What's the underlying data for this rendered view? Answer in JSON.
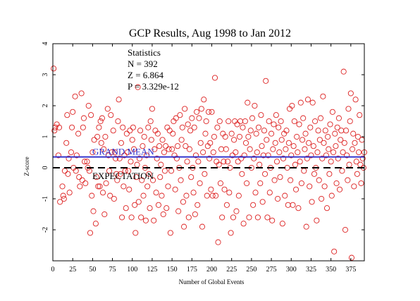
{
  "chart_data": {
    "type": "scatter",
    "title": "GCP Results, Aug 1998 to Jan 2012",
    "xlabel": "Number of Global Events",
    "ylabel": "Z-score",
    "xlim": [
      0,
      392
    ],
    "ylim": [
      -3,
      4
    ],
    "xticks": [
      0,
      25,
      50,
      75,
      100,
      125,
      150,
      175,
      200,
      225,
      250,
      275,
      300,
      325,
      350,
      375
    ],
    "yticks": [
      -2,
      -1,
      0,
      1,
      2,
      3,
      4
    ],
    "grid": false,
    "stats": {
      "heading": "Statistics",
      "n": "N = 392",
      "z": "Z = 6.864",
      "p": "P = 3.329e-12"
    },
    "reference_lines": [
      {
        "label": "GRAND MEAN",
        "y": 0.35,
        "color": "#3333cc",
        "style": "solid"
      },
      {
        "label": "EXPECTATION",
        "y": 0.0,
        "color": "#000000",
        "style": "dashed"
      }
    ],
    "marker_color": "#dd2222",
    "points": [
      [
        1,
        3.2
      ],
      [
        2,
        1.2
      ],
      [
        3,
        1.3
      ],
      [
        5,
        1.4
      ],
      [
        7,
        0.4
      ],
      [
        8,
        1.3
      ],
      [
        9,
        -1.1
      ],
      [
        12,
        -0.6
      ],
      [
        13,
        -0.9
      ],
      [
        14,
        -1.0
      ],
      [
        15,
        -0.1
      ],
      [
        17,
        0.8
      ],
      [
        18,
        1.7
      ],
      [
        19,
        -0.2
      ],
      [
        20,
        0.3
      ],
      [
        21,
        -0.8
      ],
      [
        23,
        0.5
      ],
      [
        24,
        1.3
      ],
      [
        25,
        1.8
      ],
      [
        26,
        0.0
      ],
      [
        28,
        2.3
      ],
      [
        29,
        -0.1
      ],
      [
        30,
        0.4
      ],
      [
        32,
        1.1
      ],
      [
        33,
        -0.3
      ],
      [
        34,
        -0.6
      ],
      [
        36,
        2.4
      ],
      [
        37,
        -0.4
      ],
      [
        38,
        1.3
      ],
      [
        39,
        1.6
      ],
      [
        40,
        0.2
      ],
      [
        41,
        -0.5
      ],
      [
        43,
        0.2
      ],
      [
        44,
        0.0
      ],
      [
        45,
        2.0
      ],
      [
        46,
        -0.1
      ],
      [
        47,
        -2.1
      ],
      [
        48,
        1.7
      ],
      [
        49,
        -0.9
      ],
      [
        50,
        0.5
      ],
      [
        51,
        -1.4
      ],
      [
        52,
        0.9
      ],
      [
        54,
        -1.8
      ],
      [
        55,
        -0.3
      ],
      [
        56,
        1.0
      ],
      [
        57,
        -0.6
      ],
      [
        58,
        1.3
      ],
      [
        59,
        -0.6
      ],
      [
        60,
        1.5
      ],
      [
        61,
        0.8
      ],
      [
        62,
        1.6
      ],
      [
        63,
        -0.8
      ],
      [
        64,
        0.6
      ],
      [
        65,
        -1.5
      ],
      [
        66,
        1.0
      ],
      [
        67,
        -0.5
      ],
      [
        69,
        1.9
      ],
      [
        70,
        0.4
      ],
      [
        71,
        -0.1
      ],
      [
        72,
        -0.9
      ],
      [
        73,
        1.7
      ],
      [
        74,
        0.5
      ],
      [
        76,
        1.2
      ],
      [
        77,
        -1.0
      ],
      [
        78,
        0.5
      ],
      [
        79,
        0.3
      ],
      [
        80,
        -0.2
      ],
      [
        81,
        -0.4
      ],
      [
        82,
        1.5
      ],
      [
        83,
        2.2
      ],
      [
        84,
        0.3
      ],
      [
        85,
        -0.2
      ],
      [
        86,
        0.8
      ],
      [
        87,
        -1.6
      ],
      [
        88,
        1.3
      ],
      [
        89,
        -0.6
      ],
      [
        90,
        0.4
      ],
      [
        91,
        -0.1
      ],
      [
        92,
        -1.3
      ],
      [
        93,
        1.1
      ],
      [
        94,
        0.5
      ],
      [
        95,
        -0.1
      ],
      [
        96,
        -0.7
      ],
      [
        97,
        1.2
      ],
      [
        98,
        0.2
      ],
      [
        99,
        -1.6
      ],
      [
        100,
        0.9
      ],
      [
        101,
        1.3
      ],
      [
        102,
        0.6
      ],
      [
        103,
        -1.2
      ],
      [
        104,
        -2.1
      ],
      [
        105,
        -0.3
      ],
      [
        106,
        0.1
      ],
      [
        107,
        2.6
      ],
      [
        108,
        -1.1
      ],
      [
        109,
        0.3
      ],
      [
        110,
        1.2
      ],
      [
        111,
        -1.6
      ],
      [
        112,
        -0.4
      ],
      [
        113,
        0.7
      ],
      [
        114,
        -0.9
      ],
      [
        115,
        1.0
      ],
      [
        116,
        0.0
      ],
      [
        117,
        -1.7
      ],
      [
        118,
        0.4
      ],
      [
        119,
        -0.6
      ],
      [
        120,
        1.3
      ],
      [
        121,
        -0.2
      ],
      [
        122,
        -1.3
      ],
      [
        123,
        1.5
      ],
      [
        124,
        0.9
      ],
      [
        125,
        1.9
      ],
      [
        126,
        -0.4
      ],
      [
        127,
        -1.7
      ],
      [
        128,
        0.6
      ],
      [
        129,
        1.2
      ],
      [
        130,
        -0.8
      ],
      [
        131,
        0.3
      ],
      [
        132,
        1.1
      ],
      [
        133,
        -1.2
      ],
      [
        134,
        0.7
      ],
      [
        135,
        -0.3
      ],
      [
        136,
        0.1
      ],
      [
        137,
        -0.9
      ],
      [
        138,
        0.9
      ],
      [
        139,
        -1.5
      ],
      [
        140,
        0.5
      ],
      [
        141,
        -0.1
      ],
      [
        142,
        0.7
      ],
      [
        143,
        -1.3
      ],
      [
        144,
        1.3
      ],
      [
        145,
        -0.6
      ],
      [
        146,
        0.6
      ],
      [
        147,
        1.2
      ],
      [
        148,
        -2.1
      ],
      [
        149,
        -0.1
      ],
      [
        150,
        0.6
      ],
      [
        151,
        1.1
      ],
      [
        152,
        1.5
      ],
      [
        153,
        0.4
      ],
      [
        154,
        -0.7
      ],
      [
        155,
        1.6
      ],
      [
        156,
        0.3
      ],
      [
        157,
        0.7
      ],
      [
        158,
        -1.4
      ],
      [
        159,
        0.0
      ],
      [
        160,
        1.7
      ],
      [
        161,
        -0.4
      ],
      [
        162,
        0.9
      ],
      [
        163,
        1.3
      ],
      [
        164,
        -1.1
      ],
      [
        165,
        -1.9
      ],
      [
        166,
        1.9
      ],
      [
        167,
        0.7
      ],
      [
        168,
        -0.9
      ],
      [
        169,
        0.2
      ],
      [
        170,
        1.4
      ],
      [
        171,
        -1.6
      ],
      [
        172,
        0.6
      ],
      [
        173,
        1.2
      ],
      [
        174,
        -0.3
      ],
      [
        175,
        1.6
      ],
      [
        176,
        0.0
      ],
      [
        177,
        -0.8
      ],
      [
        178,
        1.3
      ],
      [
        179,
        -1.5
      ],
      [
        180,
        0.4
      ],
      [
        181,
        1.8
      ],
      [
        182,
        -1.2
      ],
      [
        183,
        0.2
      ],
      [
        184,
        1.6
      ],
      [
        185,
        -0.5
      ],
      [
        186,
        0.8
      ],
      [
        187,
        1.9
      ],
      [
        188,
        -1.9
      ],
      [
        189,
        0.5
      ],
      [
        190,
        2.2
      ],
      [
        191,
        -0.2
      ],
      [
        192,
        1.1
      ],
      [
        193,
        1.5
      ],
      [
        194,
        -0.9
      ],
      [
        195,
        0.7
      ],
      [
        196,
        1.8
      ],
      [
        197,
        0.3
      ],
      [
        198,
        0.8
      ],
      [
        199,
        -0.7
      ],
      [
        200,
        1.8
      ],
      [
        201,
        -0.9
      ],
      [
        202,
        0.5
      ],
      [
        203,
        1.0
      ],
      [
        204,
        2.9
      ],
      [
        205,
        -0.9
      ],
      [
        206,
        0.2
      ],
      [
        207,
        1.3
      ],
      [
        208,
        -2.4
      ],
      [
        209,
        0.1
      ],
      [
        210,
        1.5
      ],
      [
        211,
        -0.5
      ],
      [
        212,
        0.6
      ],
      [
        213,
        -1.6
      ],
      [
        214,
        1.1
      ],
      [
        215,
        0.2
      ],
      [
        216,
        -0.7
      ],
      [
        217,
        1.0
      ],
      [
        218,
        0.6
      ],
      [
        219,
        -1.2
      ],
      [
        220,
        0.2
      ],
      [
        221,
        1.5
      ],
      [
        222,
        -0.8
      ],
      [
        223,
        0.0
      ],
      [
        224,
        -2.1
      ],
      [
        225,
        1.1
      ],
      [
        226,
        0.4
      ],
      [
        227,
        -1.6
      ],
      [
        228,
        0.9
      ],
      [
        229,
        1.5
      ],
      [
        230,
        0.5
      ],
      [
        231,
        -1.4
      ],
      [
        232,
        1.4
      ],
      [
        233,
        0.2
      ],
      [
        234,
        -0.9
      ],
      [
        235,
        1.0
      ],
      [
        236,
        1.5
      ],
      [
        237,
        0.3
      ],
      [
        238,
        -0.2
      ],
      [
        239,
        1.3
      ],
      [
        240,
        -1.8
      ],
      [
        241,
        0.4
      ],
      [
        242,
        1.5
      ],
      [
        243,
        0.8
      ],
      [
        244,
        -0.5
      ],
      [
        245,
        2.1
      ],
      [
        246,
        1.0
      ],
      [
        247,
        -1.6
      ],
      [
        248,
        0.6
      ],
      [
        249,
        1.2
      ],
      [
        250,
        0.0
      ],
      [
        251,
        1.6
      ],
      [
        252,
        -1.2
      ],
      [
        253,
        0.3
      ],
      [
        254,
        2.0
      ],
      [
        255,
        -0.8
      ],
      [
        256,
        1.1
      ],
      [
        257,
        0.5
      ],
      [
        258,
        -1.6
      ],
      [
        259,
        1.3
      ],
      [
        260,
        0.1
      ],
      [
        261,
        -0.5
      ],
      [
        262,
        1.7
      ],
      [
        263,
        0.7
      ],
      [
        264,
        -1.1
      ],
      [
        265,
        0.4
      ],
      [
        266,
        1.2
      ],
      [
        267,
        -0.2
      ],
      [
        268,
        2.8
      ],
      [
        269,
        0.9
      ],
      [
        270,
        -1.6
      ],
      [
        271,
        0.4
      ],
      [
        272,
        1.5
      ],
      [
        273,
        -0.8
      ],
      [
        274,
        0.0
      ],
      [
        275,
        1.1
      ],
      [
        276,
        -1.7
      ],
      [
        277,
        0.6
      ],
      [
        278,
        1.4
      ],
      [
        279,
        -0.4
      ],
      [
        280,
        0.8
      ],
      [
        281,
        1.7
      ],
      [
        282,
        0.2
      ],
      [
        283,
        -1.0
      ],
      [
        284,
        1.3
      ],
      [
        285,
        0.5
      ],
      [
        286,
        -0.3
      ],
      [
        287,
        1.5
      ],
      [
        288,
        0.9
      ],
      [
        289,
        -1.8
      ],
      [
        290,
        0.3
      ],
      [
        291,
        1.1
      ],
      [
        292,
        -0.9
      ],
      [
        293,
        0.6
      ],
      [
        294,
        1.2
      ],
      [
        295,
        0.0
      ],
      [
        296,
        -1.2
      ],
      [
        297,
        0.8
      ],
      [
        298,
        1.9
      ],
      [
        299,
        -0.4
      ],
      [
        300,
        0.4
      ],
      [
        301,
        2.0
      ],
      [
        302,
        -1.2
      ],
      [
        303,
        0.7
      ],
      [
        304,
        1.5
      ],
      [
        305,
        0.1
      ],
      [
        306,
        -0.7
      ],
      [
        307,
        1.0
      ],
      [
        308,
        0.5
      ],
      [
        309,
        -1.3
      ],
      [
        310,
        1.4
      ],
      [
        311,
        0.2
      ],
      [
        312,
        2.1
      ],
      [
        313,
        -0.5
      ],
      [
        314,
        0.9
      ],
      [
        315,
        1.6
      ],
      [
        316,
        -0.1
      ],
      [
        317,
        0.6
      ],
      [
        318,
        1.1
      ],
      [
        319,
        -1.9
      ],
      [
        320,
        0.3
      ],
      [
        321,
        2.2
      ],
      [
        322,
        0.8
      ],
      [
        323,
        -0.6
      ],
      [
        324,
        1.3
      ],
      [
        325,
        0.4
      ],
      [
        326,
        -1.1
      ],
      [
        327,
        2.1
      ],
      [
        328,
        0.7
      ],
      [
        329,
        -0.2
      ],
      [
        330,
        1.5
      ],
      [
        331,
        0.0
      ],
      [
        332,
        -1.7
      ],
      [
        333,
        0.5
      ],
      [
        334,
        1.2
      ],
      [
        335,
        -0.4
      ],
      [
        336,
        0.9
      ],
      [
        337,
        1.6
      ],
      [
        338,
        -1.0
      ],
      [
        339,
        0.3
      ],
      [
        340,
        2.3
      ],
      [
        341,
        0.8
      ],
      [
        342,
        -0.6
      ],
      [
        343,
        1.2
      ],
      [
        344,
        0.4
      ],
      [
        345,
        -1.3
      ],
      [
        346,
        1.0
      ],
      [
        347,
        0.6
      ],
      [
        348,
        -0.2
      ],
      [
        349,
        1.4
      ],
      [
        350,
        0.2
      ],
      [
        351,
        -0.9
      ],
      [
        352,
        1.8
      ],
      [
        353,
        0.5
      ],
      [
        354,
        -2.7
      ],
      [
        355,
        1.1
      ],
      [
        356,
        0.7
      ],
      [
        357,
        -0.5
      ],
      [
        358,
        1.3
      ],
      [
        359,
        0.3
      ],
      [
        360,
        1.6
      ],
      [
        361,
        -0.7
      ],
      [
        362,
        0.9
      ],
      [
        363,
        1.2
      ],
      [
        364,
        -0.1
      ],
      [
        365,
        0.5
      ],
      [
        366,
        3.1
      ],
      [
        367,
        0.8
      ],
      [
        368,
        -2.0
      ],
      [
        369,
        1.2
      ],
      [
        370,
        0.4
      ],
      [
        371,
        -0.4
      ],
      [
        372,
        1.9
      ],
      [
        373,
        0.1
      ],
      [
        374,
        1.5
      ],
      [
        375,
        2.4
      ],
      [
        376,
        -2.9
      ],
      [
        377,
        0.6
      ],
      [
        378,
        1.1
      ],
      [
        379,
        -0.6
      ],
      [
        380,
        0.8
      ],
      [
        381,
        2.2
      ],
      [
        382,
        0.2
      ],
      [
        383,
        -0.2
      ],
      [
        384,
        1.0
      ],
      [
        385,
        0.5
      ],
      [
        386,
        1.7
      ],
      [
        387,
        0.1
      ],
      [
        388,
        -0.5
      ],
      [
        389,
        0.9
      ],
      [
        390,
        0.3
      ],
      [
        391,
        0.0
      ],
      [
        392,
        0.5
      ]
    ]
  }
}
